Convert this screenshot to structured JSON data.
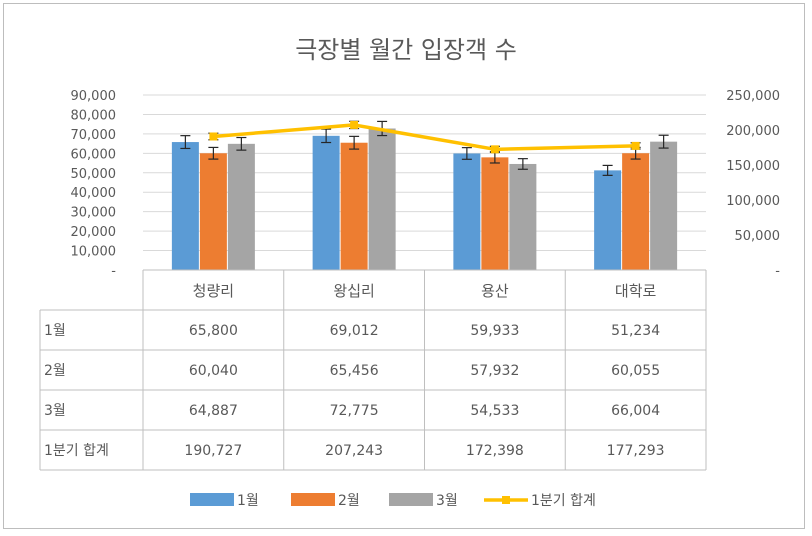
{
  "chart_data": {
    "type": "bar",
    "title": "극장별 월간 입장객 수",
    "categories": [
      "청량리",
      "왕십리",
      "용산",
      "대학로"
    ],
    "series": [
      {
        "name": "1월",
        "kind": "bar",
        "color": "#5b9bd5",
        "values": [
          65800,
          69012,
          59933,
          51234
        ],
        "labels": [
          "65,800",
          "69,012",
          "59,933",
          "51,234"
        ]
      },
      {
        "name": "2월",
        "kind": "bar",
        "color": "#ed7d31",
        "values": [
          60040,
          65456,
          57932,
          60055
        ],
        "labels": [
          "60,040",
          "65,456",
          "57,932",
          "60,055"
        ]
      },
      {
        "name": "3월",
        "kind": "bar",
        "color": "#a5a5a5",
        "values": [
          64887,
          72775,
          54533,
          66004
        ],
        "labels": [
          "64,887",
          "72,775",
          "54,533",
          "66,004"
        ]
      },
      {
        "name": "1분기 합계",
        "kind": "line",
        "axis": "secondary",
        "color": "#ffc000",
        "values": [
          190727,
          207243,
          172398,
          177293
        ],
        "labels": [
          "190,727",
          "207,243",
          "172,398",
          "177,293"
        ]
      }
    ],
    "y_primary": {
      "min": 0,
      "max": 90000,
      "ticks": [
        "-",
        "10,000",
        "20,000",
        "30,000",
        "40,000",
        "50,000",
        "60,000",
        "70,000",
        "80,000",
        "90,000"
      ]
    },
    "y_secondary": {
      "min": 0,
      "max": 250000,
      "ticks": [
        "-",
        "50,000",
        "100,000",
        "150,000",
        "200,000",
        "250,000"
      ]
    },
    "error_bar_fraction": 0.05,
    "grid": true,
    "legend": "bottom",
    "data_table": true
  }
}
